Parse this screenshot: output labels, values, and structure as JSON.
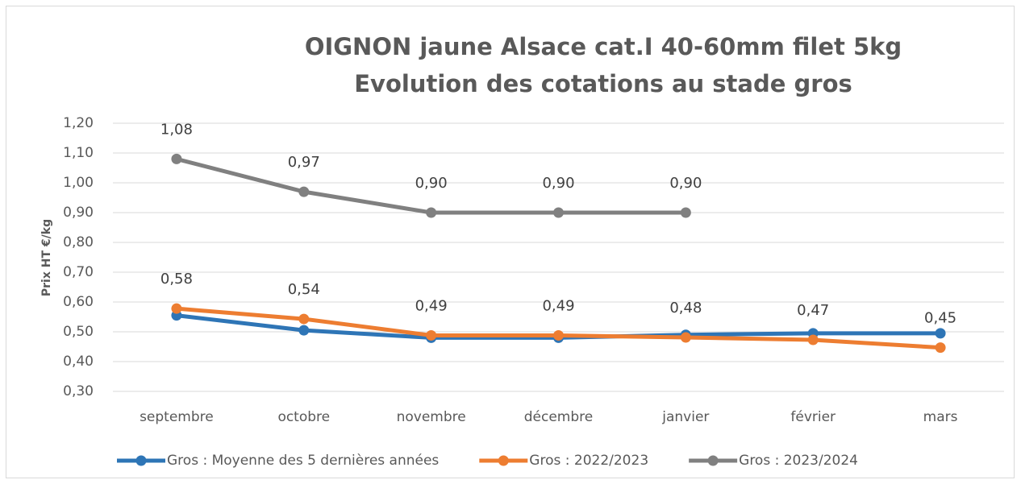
{
  "chart_data": {
    "type": "line",
    "title": "OIGNON jaune Alsace cat.I 40-60mm filet 5kg",
    "subtitle": "Evolution des cotations au stade gros",
    "y_label": "Prix HT €/kg",
    "categories": [
      "septembre",
      "octobre",
      "novembre",
      "décembre",
      "janvier",
      "février",
      "mars"
    ],
    "series": [
      {
        "name": "Gros : Moyenne des 5 dernières années",
        "color": "#2e75b6",
        "values": [
          0.555,
          0.505,
          0.48,
          0.48,
          0.49,
          0.495,
          0.495
        ]
      },
      {
        "name": "Gros : 2022/2023",
        "color": "#ed7d31",
        "values": [
          0.578,
          0.543,
          0.488,
          0.488,
          0.481,
          0.473,
          0.447
        ],
        "value_labels": [
          "0,58",
          "0,54",
          "0,49",
          "0,49",
          "0,48",
          "0,47",
          "0,45"
        ]
      },
      {
        "name": "Gros : 2023/2024",
        "color": "#808080",
        "values": [
          1.08,
          0.97,
          0.9,
          0.9,
          0.9,
          null,
          null
        ],
        "value_labels": [
          "1,08",
          "0,97",
          "0,90",
          "0,90",
          "0,90",
          null,
          null
        ]
      }
    ],
    "ylim": [
      0.3,
      1.2
    ],
    "yticks": [
      {
        "value": 0.3,
        "label": "0,30"
      },
      {
        "value": 0.4,
        "label": "0,40"
      },
      {
        "value": 0.5,
        "label": "0,50"
      },
      {
        "value": 0.6,
        "label": "0,60"
      },
      {
        "value": 0.7,
        "label": "0,70"
      },
      {
        "value": 0.8,
        "label": "0,80"
      },
      {
        "value": 0.9,
        "label": "0,90"
      },
      {
        "value": 1.0,
        "label": "1,00"
      },
      {
        "value": 1.1,
        "label": "1,10"
      },
      {
        "value": 1.2,
        "label": "1,20"
      }
    ],
    "grid": true,
    "legend": "bottom"
  }
}
